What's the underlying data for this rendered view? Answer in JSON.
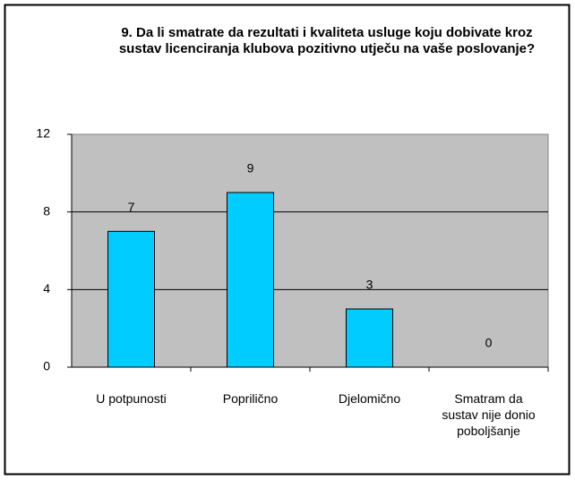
{
  "chart_data": {
    "type": "bar",
    "title": "9. Da li smatrate da rezultati i kvaliteta usluge koju dobivate kroz sustav licenciranja klubova pozitivno utječu na vaše poslovanje?",
    "categories": [
      "U potpunosti",
      "Poprilično",
      "Djelomično",
      "Smatram da sustav nije donio poboljšanje"
    ],
    "values": [
      7,
      9,
      3,
      0
    ],
    "color": "#00ccff",
    "ylim": [
      0,
      12
    ],
    "yticks": [
      0,
      4,
      8,
      12
    ],
    "grid": true
  }
}
